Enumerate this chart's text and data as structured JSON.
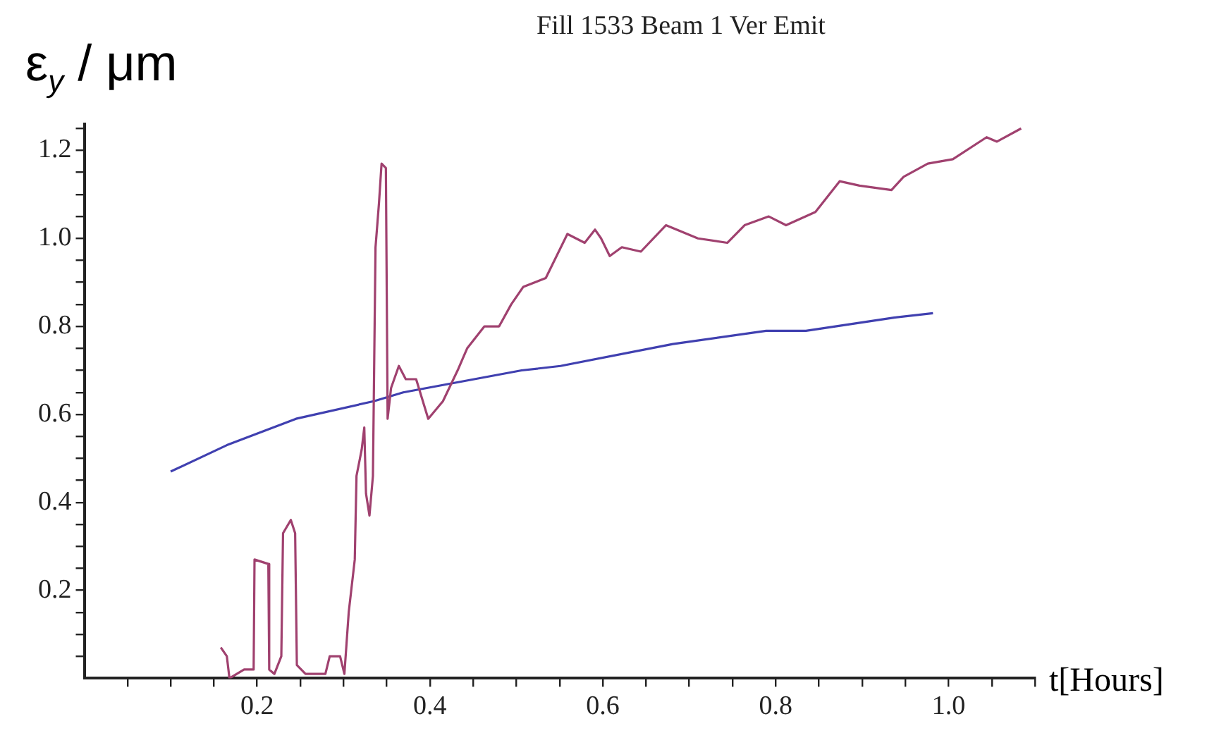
{
  "chart_data": {
    "type": "line",
    "title": "Fill 1533 Beam 1 Ver Emit",
    "xlabel": "t[Hours]",
    "ylabel": "ε$_{y}$ / μm",
    "marker": "none",
    "grid": false,
    "xlim": [
      0,
      1.1
    ],
    "ylim": [
      0,
      1.26
    ],
    "xticks": [
      {
        "value": 0.05,
        "label": null
      },
      {
        "value": 0.1,
        "label": null
      },
      {
        "value": 0.15,
        "label": null
      },
      {
        "value": 0.2,
        "label": "0.2"
      },
      {
        "value": 0.25,
        "label": null
      },
      {
        "value": 0.3,
        "label": null
      },
      {
        "value": 0.35,
        "label": null
      },
      {
        "value": 0.4,
        "label": "0.4"
      },
      {
        "value": 0.45,
        "label": null
      },
      {
        "value": 0.5,
        "label": null
      },
      {
        "value": 0.55,
        "label": null
      },
      {
        "value": 0.6,
        "label": "0.6"
      },
      {
        "value": 0.65,
        "label": null
      },
      {
        "value": 0.7,
        "label": null
      },
      {
        "value": 0.75,
        "label": null
      },
      {
        "value": 0.8,
        "label": "0.8"
      },
      {
        "value": 0.85,
        "label": null
      },
      {
        "value": 0.9,
        "label": null
      },
      {
        "value": 0.95,
        "label": null
      },
      {
        "value": 1.0,
        "label": "1.0"
      },
      {
        "value": 1.05,
        "label": null
      },
      {
        "value": 1.1,
        "label": null
      }
    ],
    "yticks": [
      {
        "value": 0.05,
        "label": null
      },
      {
        "value": 0.1,
        "label": null
      },
      {
        "value": 0.15,
        "label": null
      },
      {
        "value": 0.2,
        "label": "0.2"
      },
      {
        "value": 0.25,
        "label": null
      },
      {
        "value": 0.3,
        "label": null
      },
      {
        "value": 0.35,
        "label": null
      },
      {
        "value": 0.4,
        "label": "0.4"
      },
      {
        "value": 0.45,
        "label": null
      },
      {
        "value": 0.5,
        "label": null
      },
      {
        "value": 0.55,
        "label": null
      },
      {
        "value": 0.6,
        "label": "0.6"
      },
      {
        "value": 0.65,
        "label": null
      },
      {
        "value": 0.7,
        "label": null
      },
      {
        "value": 0.75,
        "label": null
      },
      {
        "value": 0.8,
        "label": "0.8"
      },
      {
        "value": 0.85,
        "label": null
      },
      {
        "value": 0.9,
        "label": null
      },
      {
        "value": 0.95,
        "label": null
      },
      {
        "value": 1.0,
        "label": "1.0"
      },
      {
        "value": 1.05,
        "label": null
      },
      {
        "value": 1.1,
        "label": null
      },
      {
        "value": 1.15,
        "label": null
      },
      {
        "value": 1.2,
        "label": "1.2"
      },
      {
        "value": 1.25,
        "label": null
      }
    ],
    "series": [
      {
        "color": "#a0416f",
        "x": [
          0.158,
          0.165,
          0.168,
          0.185,
          0.196,
          0.197,
          0.213,
          0.214,
          0.22,
          0.228,
          0.23,
          0.239,
          0.244,
          0.246,
          0.256,
          0.279,
          0.284,
          0.296,
          0.301,
          0.306,
          0.313,
          0.315,
          0.321,
          0.324,
          0.326,
          0.33,
          0.334,
          0.337,
          0.341,
          0.344,
          0.349,
          0.351,
          0.355,
          0.364,
          0.372,
          0.384,
          0.398,
          0.415,
          0.432,
          0.443,
          0.463,
          0.48,
          0.494,
          0.508,
          0.534,
          0.559,
          0.579,
          0.591,
          0.598,
          0.608,
          0.622,
          0.644,
          0.673,
          0.71,
          0.744,
          0.764,
          0.792,
          0.812,
          0.846,
          0.874,
          0.897,
          0.934,
          0.948,
          0.976,
          1.005,
          1.044,
          1.056,
          1.084
        ],
        "values": [
          0.07,
          0.05,
          0,
          0.02,
          0.02,
          0.27,
          0.26,
          0.02,
          0.01,
          0.05,
          0.33,
          0.36,
          0.33,
          0.03,
          0.01,
          0.01,
          0.05,
          0.05,
          0.01,
          0.15,
          0.27,
          0.46,
          0.52,
          0.57,
          0.42,
          0.37,
          0.46,
          0.98,
          1.08,
          1.17,
          1.16,
          0.59,
          0.66,
          0.71,
          0.68,
          0.68,
          0.59,
          0.63,
          0.7,
          0.75,
          0.8,
          0.8,
          0.85,
          0.89,
          0.91,
          1.01,
          0.99,
          1.02,
          1.0,
          0.96,
          0.98,
          0.97,
          1.03,
          1.0,
          0.99,
          1.03,
          1.05,
          1.03,
          1.06,
          1.13,
          1.12,
          1.11,
          1.14,
          1.17,
          1.18,
          1.23,
          1.22,
          1.25
        ]
      },
      {
        "color": "#4040b0",
        "x": [
          0.1,
          0.165,
          0.245,
          0.335,
          0.369,
          0.506,
          0.551,
          0.681,
          0.789,
          0.835,
          0.869,
          0.937,
          0.982
        ],
        "values": [
          0.47,
          0.53,
          0.59,
          0.63,
          0.65,
          0.7,
          0.71,
          0.76,
          0.79,
          0.79,
          0.8,
          0.82,
          0.83
        ]
      }
    ]
  }
}
